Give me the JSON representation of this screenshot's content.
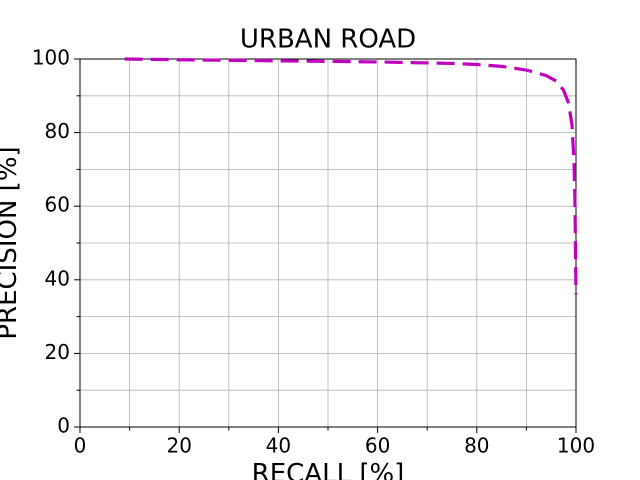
{
  "chart_data": {
    "type": "line",
    "title": "URBAN ROAD",
    "x_label": "RECALL [%]",
    "y_label": "PRECISION [%]",
    "xlim": [
      0,
      100
    ],
    "ylim": [
      0,
      100
    ],
    "xticks": [
      0,
      20,
      40,
      60,
      80,
      100
    ],
    "yticks": [
      0,
      20,
      40,
      60,
      80,
      100
    ],
    "xminorticks": [
      10,
      30,
      50,
      70,
      90
    ],
    "yminorticks": [
      10,
      30,
      50,
      70,
      90
    ],
    "grid": true,
    "series": [
      {
        "color": "#bf00bf",
        "line_style": "dashed",
        "x": [
          9,
          20,
          40,
          60,
          75,
          80,
          85,
          90,
          94,
          96,
          97.5,
          98.5,
          99.2,
          99.6,
          99.8,
          99.9,
          100
        ],
        "values": [
          100,
          99.8,
          99.5,
          99.2,
          98.8,
          98.5,
          98,
          97,
          95.5,
          94,
          91.5,
          88,
          82,
          72,
          60,
          48,
          36
        ]
      }
    ]
  }
}
